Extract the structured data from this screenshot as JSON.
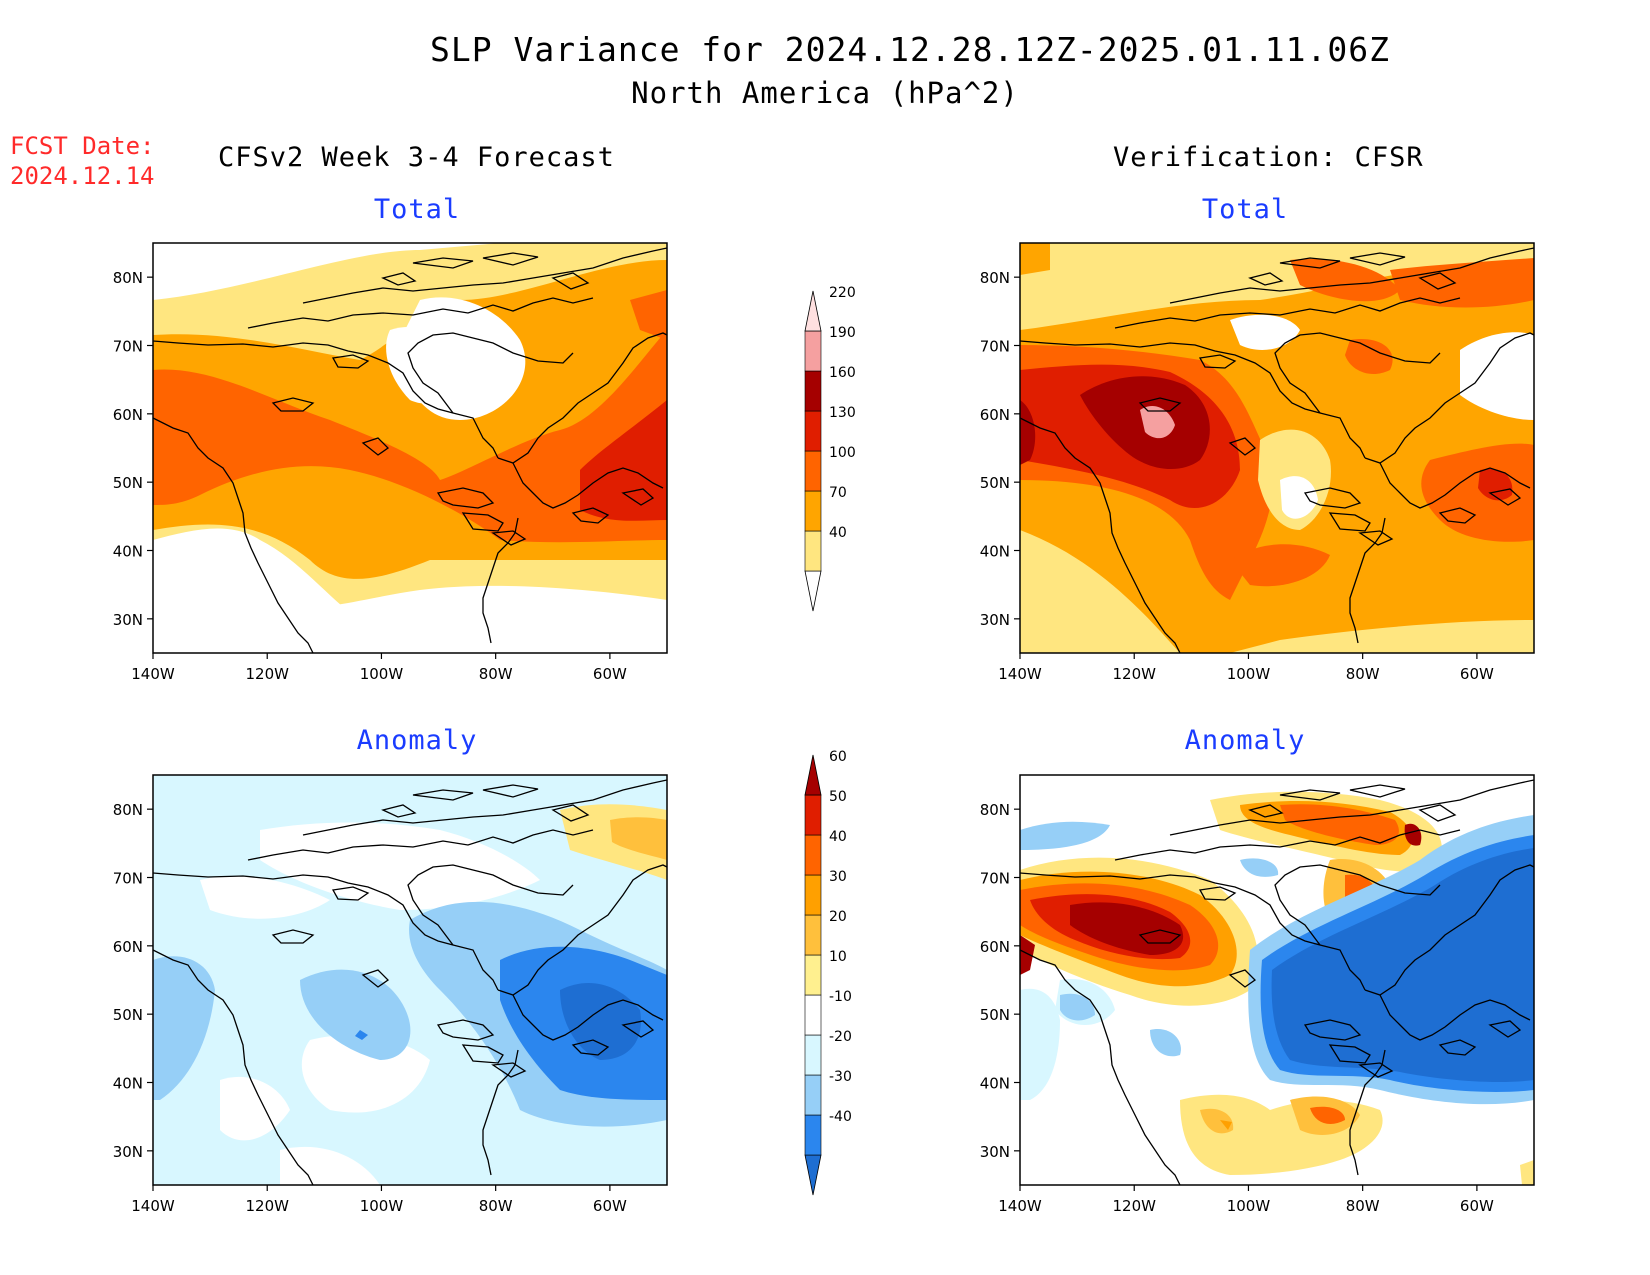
{
  "title": "SLP Variance for 2024.12.28.12Z-2025.01.11.06Z",
  "subtitle": "North America (hPa^2)",
  "fcst_date_label": "FCST Date:",
  "fcst_date_value": "2024.12.14",
  "left_column_title": "CFSv2 Week 3-4 Forecast",
  "right_column_title": "Verification: CFSR",
  "panel_titles": {
    "total": "Total",
    "anomaly": "Anomaly"
  },
  "axes": {
    "lon_ticks": [
      "140W",
      "120W",
      "100W",
      "80W",
      "60W"
    ],
    "lat_ticks": [
      "80N",
      "70N",
      "60N",
      "50N",
      "40N",
      "30N"
    ]
  },
  "colorbars": {
    "total": {
      "levels": [
        "40",
        "70",
        "100",
        "130",
        "160",
        "190",
        "220"
      ],
      "colors": [
        "#ffffff",
        "#ffe680",
        "#ffa500",
        "#ff6400",
        "#e01e00",
        "#a50000",
        "#f5a0a0",
        "#ffe0e0"
      ]
    },
    "anomaly": {
      "levels": [
        "60",
        "50",
        "40",
        "30",
        "20",
        "10",
        "-10",
        "-20",
        "-30",
        "-40"
      ],
      "colors": [
        "#1e6ed2",
        "#2b86ee",
        "#96cff7",
        "#d8f7ff",
        "#ffffff",
        "#fff08f",
        "#ffc03c",
        "#ffa000",
        "#ff6400",
        "#e01e00",
        "#a50000"
      ]
    }
  },
  "palette": {
    "land_line": "#000000",
    "frame": "#000000"
  }
}
